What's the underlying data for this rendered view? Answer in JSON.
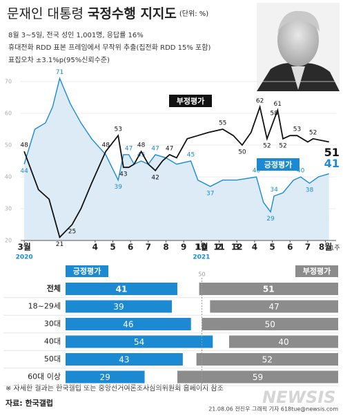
{
  "title": {
    "light": "문재인 대통령",
    "bold": "국정수행 지지도",
    "unit": "(단위: %)"
  },
  "notes": [
    "8월 3~5일, 전국 성인 1,001명, 응답률 16%",
    "휴대전화 RDD 표본 프레임에서 무작위 추출(집전화 RDD 15% 포함)",
    "표집오차 ±3.1%p(95%신뢰수준)"
  ],
  "chart_data": [
    {
      "type": "line",
      "xlim": [
        -0.2,
        17.6
      ],
      "xticks": [
        {
          "value": 0,
          "label": "3월"
        },
        4,
        5,
        6,
        7,
        8,
        9,
        10,
        11,
        12,
        {
          "value": 10,
          "label": "1월"
        },
        {
          "value": 11,
          "label": "2"
        },
        {
          "value": 12,
          "label": "3"
        },
        {
          "value": 13,
          "label": "4"
        },
        {
          "value": 14,
          "label": "5"
        },
        {
          "value": 15,
          "label": "6"
        },
        {
          "value": 16,
          "label": "7"
        },
        {
          "value": 17,
          "label": "8월"
        }
      ],
      "x_annotations": [
        {
          "x": 0,
          "label": "2020"
        },
        {
          "x": 10,
          "label": "2021"
        },
        {
          "x": 17.55,
          "label": "1주"
        }
      ],
      "ylim": [
        20,
        70
      ],
      "yticks": [
        20,
        30,
        40,
        50,
        60,
        70
      ],
      "grid": true,
      "series": [
        {
          "name": "긍정평가",
          "color": "#1b8ad3",
          "area_color": "#dcebf6",
          "x": [
            0,
            0.6,
            1.2,
            1.6,
            2,
            2.6,
            3.2,
            3.8,
            4.6,
            5.3,
            5.6,
            5.9,
            6.2,
            6.6,
            7,
            7.4,
            8,
            8.6,
            9.4,
            9.8,
            10.5,
            11.2,
            12,
            13.1,
            13.5,
            13.9,
            14.1,
            14.6,
            15.2,
            15.6,
            16.1,
            16.6,
            17.2
          ],
          "values": [
            44,
            55,
            57,
            62,
            71,
            63,
            57,
            52,
            47,
            39,
            47,
            47,
            44,
            45,
            44,
            47,
            46,
            44,
            45,
            39,
            37,
            39,
            39,
            40,
            32,
            29,
            34,
            35,
            39,
            40,
            38,
            40,
            41
          ],
          "value_labels": [
            "44",
            null,
            null,
            null,
            "71",
            null,
            null,
            null,
            null,
            "39",
            null,
            "47",
            null,
            "45",
            null,
            "47",
            null,
            null,
            "45",
            null,
            "37",
            null,
            null,
            "40",
            null,
            "29",
            "34",
            null,
            null,
            "40",
            "38",
            null,
            "41"
          ]
        },
        {
          "name": "부정평가",
          "color": "#111111",
          "x": [
            0,
            0.8,
            1.4,
            2,
            2.7,
            3.2,
            3.8,
            4.6,
            5.3,
            5.6,
            5.9,
            6.2,
            6.6,
            7,
            7.4,
            7.8,
            8.2,
            8.6,
            9.2,
            9.8,
            10.4,
            11.2,
            11.8,
            12.3,
            12.8,
            13.3,
            13.7,
            14.1,
            14.3,
            14.6,
            15,
            15.4,
            16,
            16.3,
            17.2
          ],
          "values": [
            48,
            36,
            33,
            21,
            25,
            30,
            38,
            48,
            53,
            43,
            43,
            44,
            48,
            44,
            42,
            45,
            47,
            46,
            52,
            53,
            54,
            55,
            53,
            50,
            54,
            62,
            52,
            58,
            61,
            52,
            53,
            53,
            51,
            52,
            51
          ],
          "value_labels": [
            "48",
            null,
            null,
            "21",
            "25",
            null,
            null,
            "48",
            "53",
            "43",
            null,
            null,
            "48",
            null,
            "42",
            null,
            "47",
            null,
            null,
            null,
            null,
            "55",
            null,
            "50",
            null,
            "62",
            "52",
            "58",
            "61",
            "52",
            null,
            "53",
            null,
            "52",
            "51"
          ]
        }
      ]
    },
    {
      "type": "diverging_bar",
      "categories": [
        "전체",
        "18~29세",
        "30대",
        "40대",
        "50대",
        "60대 이상"
      ],
      "xlim": [
        0,
        100
      ],
      "xticks": [
        50
      ],
      "series": [
        {
          "name": "긍정평가",
          "color": "#1b8ad3",
          "values": [
            41,
            39,
            46,
            54,
            43,
            29
          ]
        },
        {
          "name": "부정평가",
          "color": "#8c8c8c",
          "values": [
            51,
            47,
            50,
            40,
            52,
            59
          ]
        }
      ]
    }
  ],
  "footer": {
    "note": "※ 자세한 결과는 한국갤럽 또는 중앙선거여론조사심의위원회 홈페이지 참조",
    "source": "자료: 한국갤럽",
    "credit": "21.08.06 전진우 그래픽 기자 618tue@newsis.com",
    "logo": "NEWSIS"
  }
}
